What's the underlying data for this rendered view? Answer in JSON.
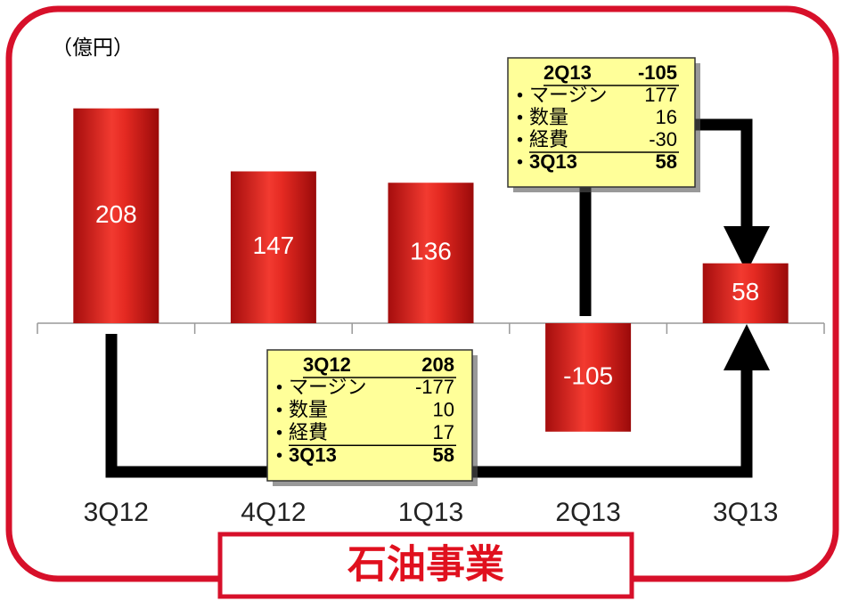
{
  "chart_data": {
    "type": "bar",
    "title": "石油事業",
    "unit": "（億円）",
    "categories": [
      "3Q12",
      "4Q12",
      "1Q13",
      "2Q13",
      "3Q13"
    ],
    "values": [
      208,
      147,
      136,
      -105,
      58
    ],
    "color": "#e41e1e",
    "annotations": [
      {
        "label": "3Q12",
        "value": 208,
        "items": [
          {
            "label": "マージン",
            "value": -177
          },
          {
            "label": "数量",
            "value": 10
          },
          {
            "label": "経費",
            "value": 17
          }
        ],
        "result": {
          "label": "3Q13",
          "value": 58
        }
      },
      {
        "label": "2Q13",
        "value": -105,
        "items": [
          {
            "label": "マージン",
            "value": 177
          },
          {
            "label": "数量",
            "value": 16
          },
          {
            "label": "経費",
            "value": -30
          }
        ],
        "result": {
          "label": "3Q13",
          "value": 58
        }
      }
    ]
  }
}
